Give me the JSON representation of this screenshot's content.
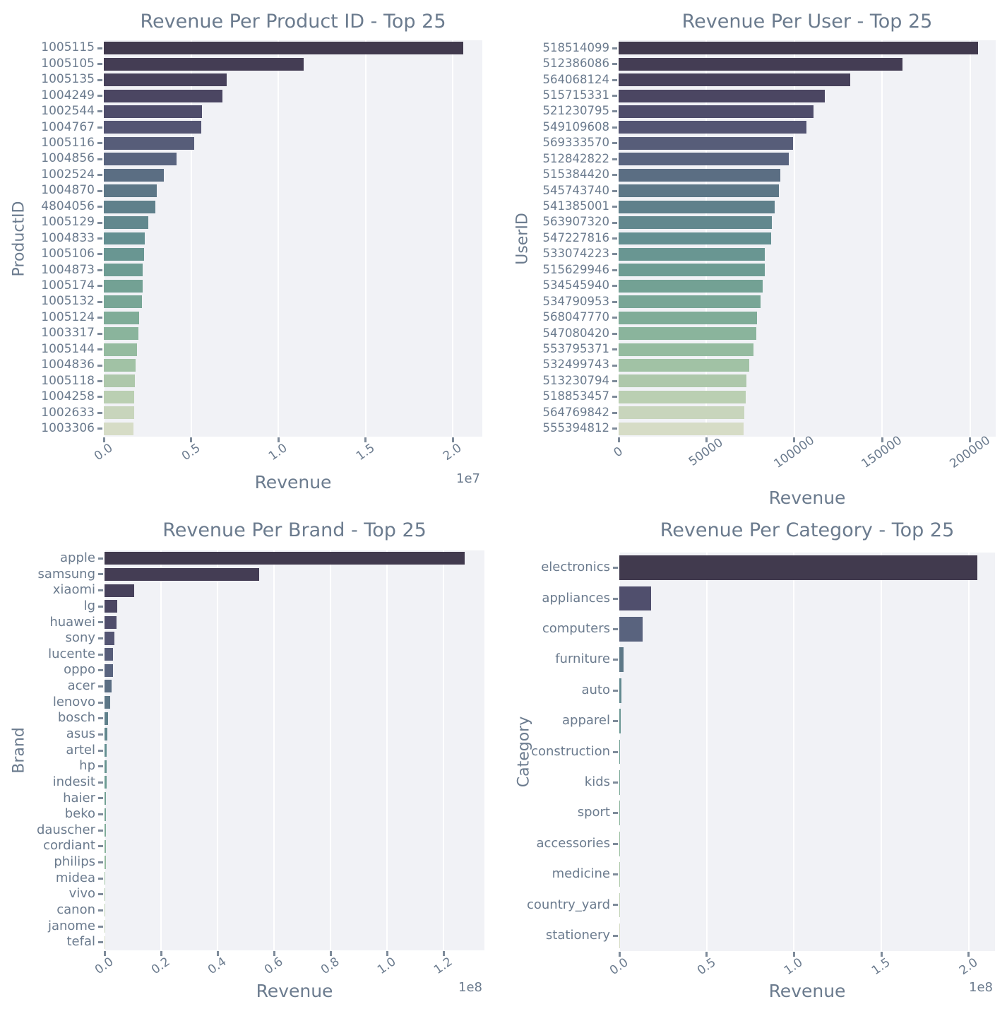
{
  "style": {
    "figure_bg": "#ffffff",
    "plot_bg": "#f1f2f6",
    "grid_color": "#ffffff",
    "text_color": "#6b7b8e",
    "tick_color": "#7e8b9a",
    "palette_anchors": [
      "#413a4e",
      "#48425d",
      "#535372",
      "#5a6680",
      "#5e7d89",
      "#649092",
      "#6f9e93",
      "#7daa97",
      "#97bda1",
      "#b5ccae",
      "#d6dcc6"
    ]
  },
  "chart_data": [
    {
      "type": "bar",
      "orientation": "horizontal",
      "title": "Revenue Per Product ID - Top 25",
      "xlabel": "Revenue",
      "ylabel": "ProductID",
      "offset_text": "1e7",
      "grid": true,
      "xticks": {
        "labels": [
          "0.0",
          "0.5",
          "1.0",
          "1.5",
          "2.0"
        ],
        "values": [
          0,
          5000000,
          10000000,
          15000000,
          20000000
        ]
      },
      "xlim": [
        0,
        21700000
      ],
      "categories": [
        "1005115",
        "1005105",
        "1005135",
        "1004249",
        "1002544",
        "1004767",
        "1005116",
        "1004856",
        "1002524",
        "1004870",
        "4804056",
        "1005129",
        "1004833",
        "1005106",
        "1004873",
        "1005174",
        "1005132",
        "1005124",
        "1003317",
        "1005144",
        "1004836",
        "1005118",
        "1004258",
        "1002633",
        "1003306"
      ],
      "values": [
        20600000,
        11450000,
        7050000,
        6820000,
        5620000,
        5580000,
        5180000,
        4160000,
        3440000,
        3030000,
        2960000,
        2560000,
        2330000,
        2310000,
        2240000,
        2230000,
        2170000,
        2040000,
        1970000,
        1900000,
        1830000,
        1780000,
        1760000,
        1750000,
        1720000
      ]
    },
    {
      "type": "bar",
      "orientation": "horizontal",
      "title": "Revenue Per User - Top 25",
      "xlabel": "Revenue",
      "ylabel": "UserID",
      "offset_text": "",
      "grid": true,
      "xticks": {
        "labels": [
          "0",
          "50000",
          "100000",
          "150000",
          "200000"
        ],
        "values": [
          0,
          50000,
          100000,
          150000,
          200000
        ]
      },
      "xlim": [
        0,
        214500
      ],
      "categories": [
        "518514099",
        "512386086",
        "564068124",
        "515715331",
        "521230795",
        "549109608",
        "569333570",
        "512842822",
        "515384420",
        "545743740",
        "541385001",
        "563907320",
        "547227816",
        "533074223",
        "515629946",
        "534545940",
        "534790953",
        "568047770",
        "547080420",
        "553795371",
        "532499743",
        "513230794",
        "518853457",
        "564769842",
        "555394812"
      ],
      "values": [
        204500,
        161500,
        131700,
        117200,
        110700,
        106800,
        99400,
        97000,
        92100,
        91200,
        88700,
        87000,
        86700,
        83200,
        83000,
        81800,
        80700,
        78700,
        78400,
        76700,
        74500,
        72700,
        72400,
        71600,
        70900
      ]
    },
    {
      "type": "bar",
      "orientation": "horizontal",
      "title": "Revenue Per Brand - Top 25",
      "xlabel": "Revenue",
      "ylabel": "Brand",
      "offset_text": "1e8",
      "grid": true,
      "xticks": {
        "labels": [
          "0.0",
          "0.2",
          "0.4",
          "0.6",
          "0.8",
          "1.0",
          "1.2"
        ],
        "values": [
          0,
          20000000,
          40000000,
          60000000,
          80000000,
          100000000,
          120000000
        ]
      },
      "xlim": [
        0,
        134500000
      ],
      "categories": [
        "apple",
        "samsung",
        "xiaomi",
        "lg",
        "huawei",
        "sony",
        "lucente",
        "oppo",
        "acer",
        "lenovo",
        "bosch",
        "asus",
        "artel",
        "hp",
        "indesit",
        "haier",
        "beko",
        "dauscher",
        "cordiant",
        "philips",
        "midea",
        "vivo",
        "canon",
        "janome",
        "tefal"
      ],
      "values": [
        127500000,
        54700000,
        10600000,
        4600000,
        4250000,
        3400000,
        3000000,
        2900000,
        2600000,
        2100000,
        1200000,
        920000,
        820000,
        700000,
        650000,
        600000,
        550000,
        500000,
        450000,
        400000,
        350000,
        300000,
        250000,
        200000,
        150000
      ]
    },
    {
      "type": "bar",
      "orientation": "horizontal",
      "title": "Revenue Per Category - Top 25",
      "xlabel": "Revenue",
      "ylabel": "Category",
      "offset_text": "1e8",
      "grid": true,
      "xticks": {
        "labels": [
          "0.0",
          "0.5",
          "1.0",
          "1.5",
          "2.0"
        ],
        "values": [
          0,
          50000000,
          100000000,
          150000000,
          200000000
        ]
      },
      "xlim": [
        0,
        215000000
      ],
      "categories": [
        "electronics",
        "appliances",
        "computers",
        "furniture",
        "auto",
        "apparel",
        "construction",
        "kids",
        "sport",
        "accessories",
        "medicine",
        "country_yard",
        "stationery"
      ],
      "values": [
        205000000,
        18300000,
        13400000,
        2600000,
        1100000,
        800000,
        550000,
        450000,
        330000,
        170000,
        120000,
        80000,
        50000
      ]
    }
  ]
}
